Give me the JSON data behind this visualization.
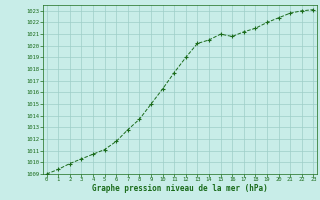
{
  "x": [
    0,
    1,
    2,
    3,
    4,
    5,
    6,
    7,
    8,
    9,
    10,
    11,
    12,
    13,
    14,
    15,
    16,
    17,
    18,
    19,
    20,
    21,
    22,
    23
  ],
  "y": [
    1009.0,
    1009.4,
    1009.9,
    1010.3,
    1010.7,
    1011.1,
    1011.8,
    1012.8,
    1013.7,
    1015.0,
    1016.3,
    1017.7,
    1019.0,
    1020.2,
    1020.5,
    1021.0,
    1020.8,
    1021.2,
    1021.5,
    1022.0,
    1022.4,
    1022.8,
    1023.0,
    1023.1
  ],
  "line_color": "#1a6b1a",
  "marker": "+",
  "marker_color": "#1a6b1a",
  "bg_color": "#c8ede8",
  "grid_color": "#9ecec8",
  "xlabel": "Graphe pression niveau de la mer (hPa)",
  "xlabel_color": "#1a6b1a",
  "tick_color": "#1a6b1a",
  "ylim": [
    1009,
    1023.5
  ],
  "xlim": [
    -0.3,
    23.3
  ],
  "yticks": [
    1009,
    1010,
    1011,
    1012,
    1013,
    1014,
    1015,
    1016,
    1017,
    1018,
    1019,
    1020,
    1021,
    1022,
    1023
  ],
  "xticks": [
    0,
    1,
    2,
    3,
    4,
    5,
    6,
    7,
    8,
    9,
    10,
    11,
    12,
    13,
    14,
    15,
    16,
    17,
    18,
    19,
    20,
    21,
    22,
    23
  ],
  "tick_fontsize": 4.0,
  "xlabel_fontsize": 5.5
}
